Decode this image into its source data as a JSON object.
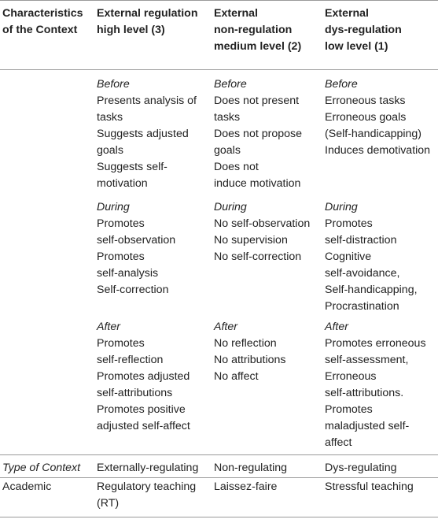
{
  "header": {
    "col1": [
      "Characteristics",
      "of the Context"
    ],
    "col2": [
      "External regulation",
      "high level (3)"
    ],
    "col3": [
      "External",
      "non-regulation",
      "medium level (2)"
    ],
    "col4": [
      "External",
      "dys-regulation",
      "low level (1)"
    ]
  },
  "phases": [
    {
      "high": {
        "label": "Before",
        "lines": [
          "Presents analysis of",
          "tasks",
          "Suggests adjusted",
          "goals",
          "Suggests self-",
          "motivation"
        ]
      },
      "medium": {
        "label": "Before",
        "lines": [
          "Does not present",
          "tasks",
          "Does not propose",
          "goals",
          "Does not",
          "induce motivation"
        ]
      },
      "low": {
        "label": "Before",
        "lines": [
          "Erroneous tasks",
          "Erroneous goals",
          "(Self-handicapping)",
          "Induces demotivation"
        ]
      }
    },
    {
      "high": {
        "label": "During",
        "lines": [
          "Promotes",
          "self-observation",
          "Promotes",
          "self-analysis",
          "Self-correction"
        ]
      },
      "medium": {
        "label": "During",
        "lines": [
          "No self-observation",
          "No supervision",
          "No self-correction"
        ]
      },
      "low": {
        "label": "During",
        "lines": [
          "Promotes",
          "self-distraction",
          "Cognitive",
          "self-avoidance,",
          "Self-handicapping,",
          "Procrastination"
        ]
      }
    },
    {
      "high": {
        "label": "After",
        "lines": [
          "Promotes",
          "self-reflection",
          "Promotes adjusted",
          "self-attributions",
          "Promotes positive",
          "adjusted self-affect"
        ]
      },
      "medium": {
        "label": "After",
        "lines": [
          "No reflection",
          "No attributions",
          "No affect"
        ]
      },
      "low": {
        "label": "After",
        "lines": [
          "Promotes erroneous",
          "self-assessment,",
          "Erroneous",
          "self-attributions.",
          "Promotes",
          "maladjusted self-",
          "affect"
        ]
      }
    }
  ],
  "type_row": {
    "label": "Type of Context",
    "high": "Externally-regulating",
    "medium": "Non-regulating",
    "low": "Dys-regulating"
  },
  "academic_row": {
    "label": "Academic",
    "high": [
      "Regulatory teaching",
      "(RT)"
    ],
    "medium": "Laissez-faire",
    "low": "Stressful teaching"
  }
}
